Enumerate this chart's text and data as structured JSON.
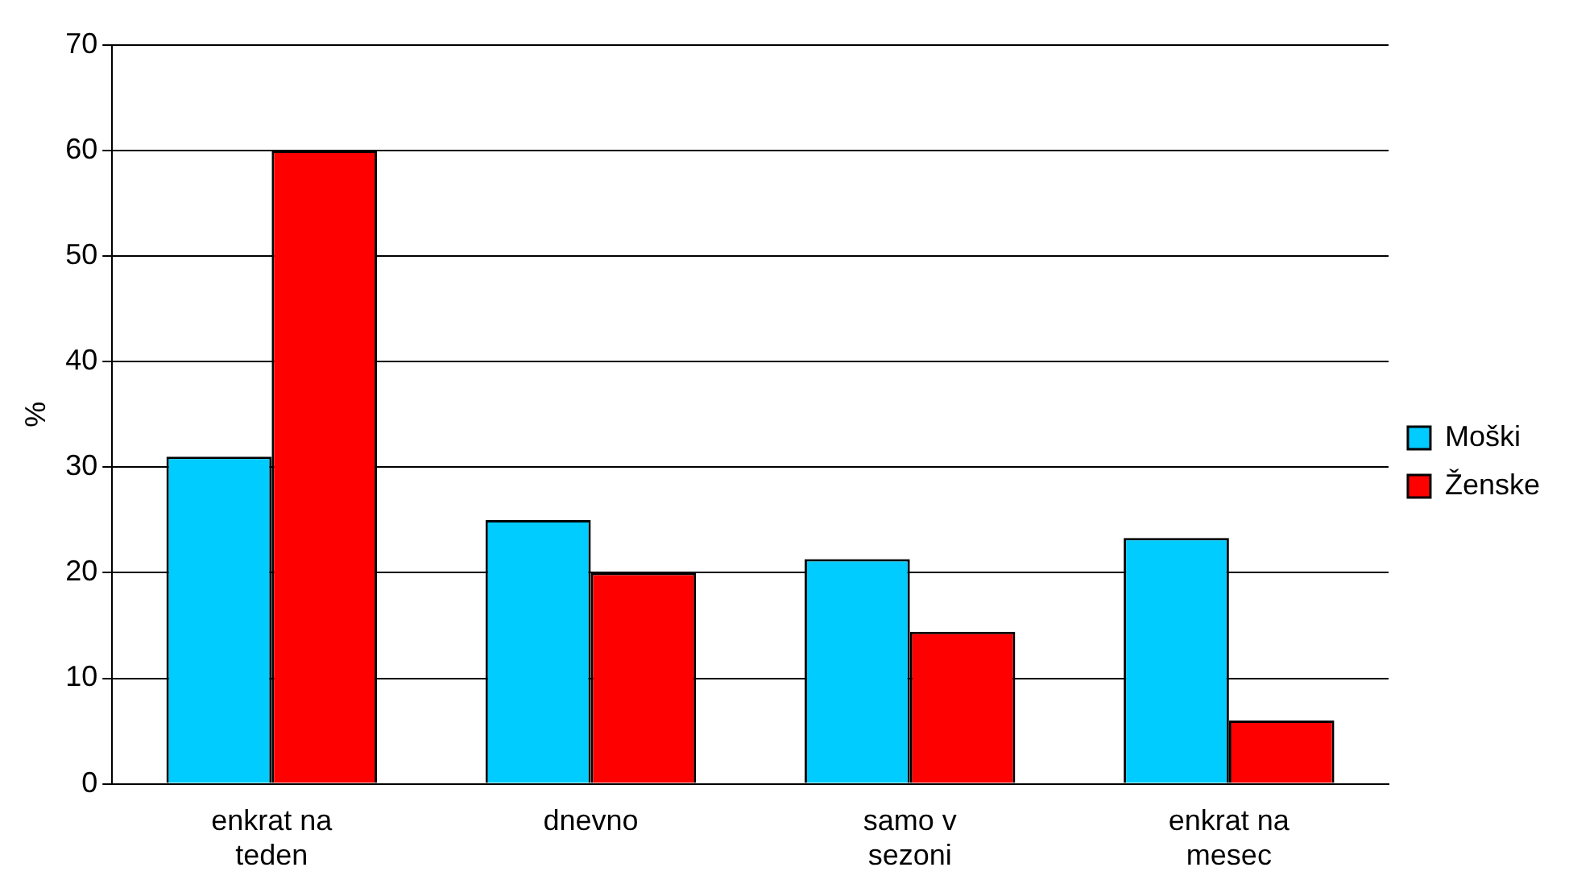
{
  "chart_data": {
    "type": "bar",
    "ylabel": "%",
    "categories": [
      "enkrat na teden",
      "dnevno",
      "samo v sezoni",
      "enkrat na mesec"
    ],
    "series": [
      {
        "name": "Moški",
        "color": "#00ccff",
        "values": [
          31,
          25,
          21.3,
          23.3
        ]
      },
      {
        "name": "Ženske",
        "color": "#ff0000",
        "values": [
          60,
          20,
          14.4,
          6
        ]
      }
    ],
    "ylim": [
      0,
      70
    ],
    "yticks": [
      0,
      10,
      20,
      30,
      40,
      50,
      60,
      70
    ],
    "grid": "y",
    "legend": "right"
  }
}
